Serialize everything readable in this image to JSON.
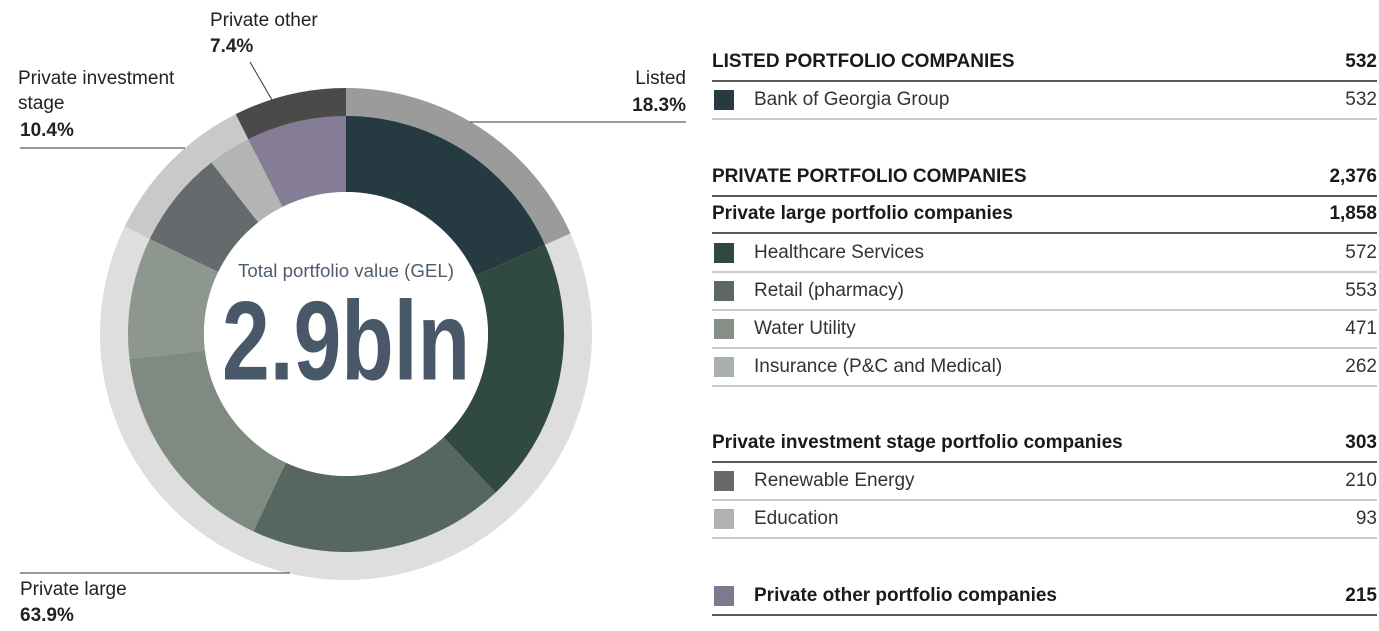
{
  "chart_data": {
    "type": "donut",
    "center_label": "Total portfolio value (GEL)",
    "center_value": "2.9bln",
    "outer": {
      "categories": [
        "Listed",
        "Private large",
        "Private investment stage",
        "Private other"
      ],
      "values": [
        18.3,
        63.9,
        10.4,
        7.4
      ],
      "value_labels": [
        "18.3%",
        "63.9%",
        "10.4%",
        "7.4%"
      ],
      "colors": [
        "#9b9b9b",
        "#dedede",
        "#c9c9c9",
        "#4a4a4a"
      ]
    },
    "inner": {
      "values": [
        532,
        572,
        553,
        471,
        262,
        210,
        93,
        215
      ],
      "colors": [
        "#263a42",
        "#314a40",
        "#566760",
        "#7f8b82",
        "#8e978f",
        "#656b6d",
        "#b4b4b4",
        "#857d96"
      ]
    }
  },
  "table": {
    "rows": [
      {
        "kind": "header",
        "name": "LISTED PORTFOLIO COMPANIES",
        "value": "532"
      },
      {
        "kind": "item",
        "name": "Bank of Georgia Group",
        "value": "532",
        "color": "#263a42"
      },
      {
        "kind": "header",
        "name": "PRIVATE PORTFOLIO COMPANIES",
        "value": "2,376"
      },
      {
        "kind": "subheader",
        "name": "Private large portfolio companies",
        "value": "1,858"
      },
      {
        "kind": "item",
        "name": "Healthcare Services",
        "value": "572",
        "color": "#2f4840"
      },
      {
        "kind": "item",
        "name": "Retail (pharmacy)",
        "value": "553",
        "color": "#5e6863"
      },
      {
        "kind": "item",
        "name": "Water Utility",
        "value": "471",
        "color": "#858f86"
      },
      {
        "kind": "item",
        "name": "Insurance (P&C and Medical)",
        "value": "262",
        "color": "#aab0aa"
      },
      {
        "kind": "subheader",
        "name": "Private investment stage portfolio companies",
        "value": "303"
      },
      {
        "kind": "item",
        "name": "Renewable Energy",
        "value": "210",
        "color": "#67696b"
      },
      {
        "kind": "item",
        "name": "Education",
        "value": "93",
        "color": "#b2b2b2"
      },
      {
        "kind": "subheader",
        "name": "Private other portfolio companies",
        "value": "215",
        "color": "#7f7891"
      }
    ]
  }
}
